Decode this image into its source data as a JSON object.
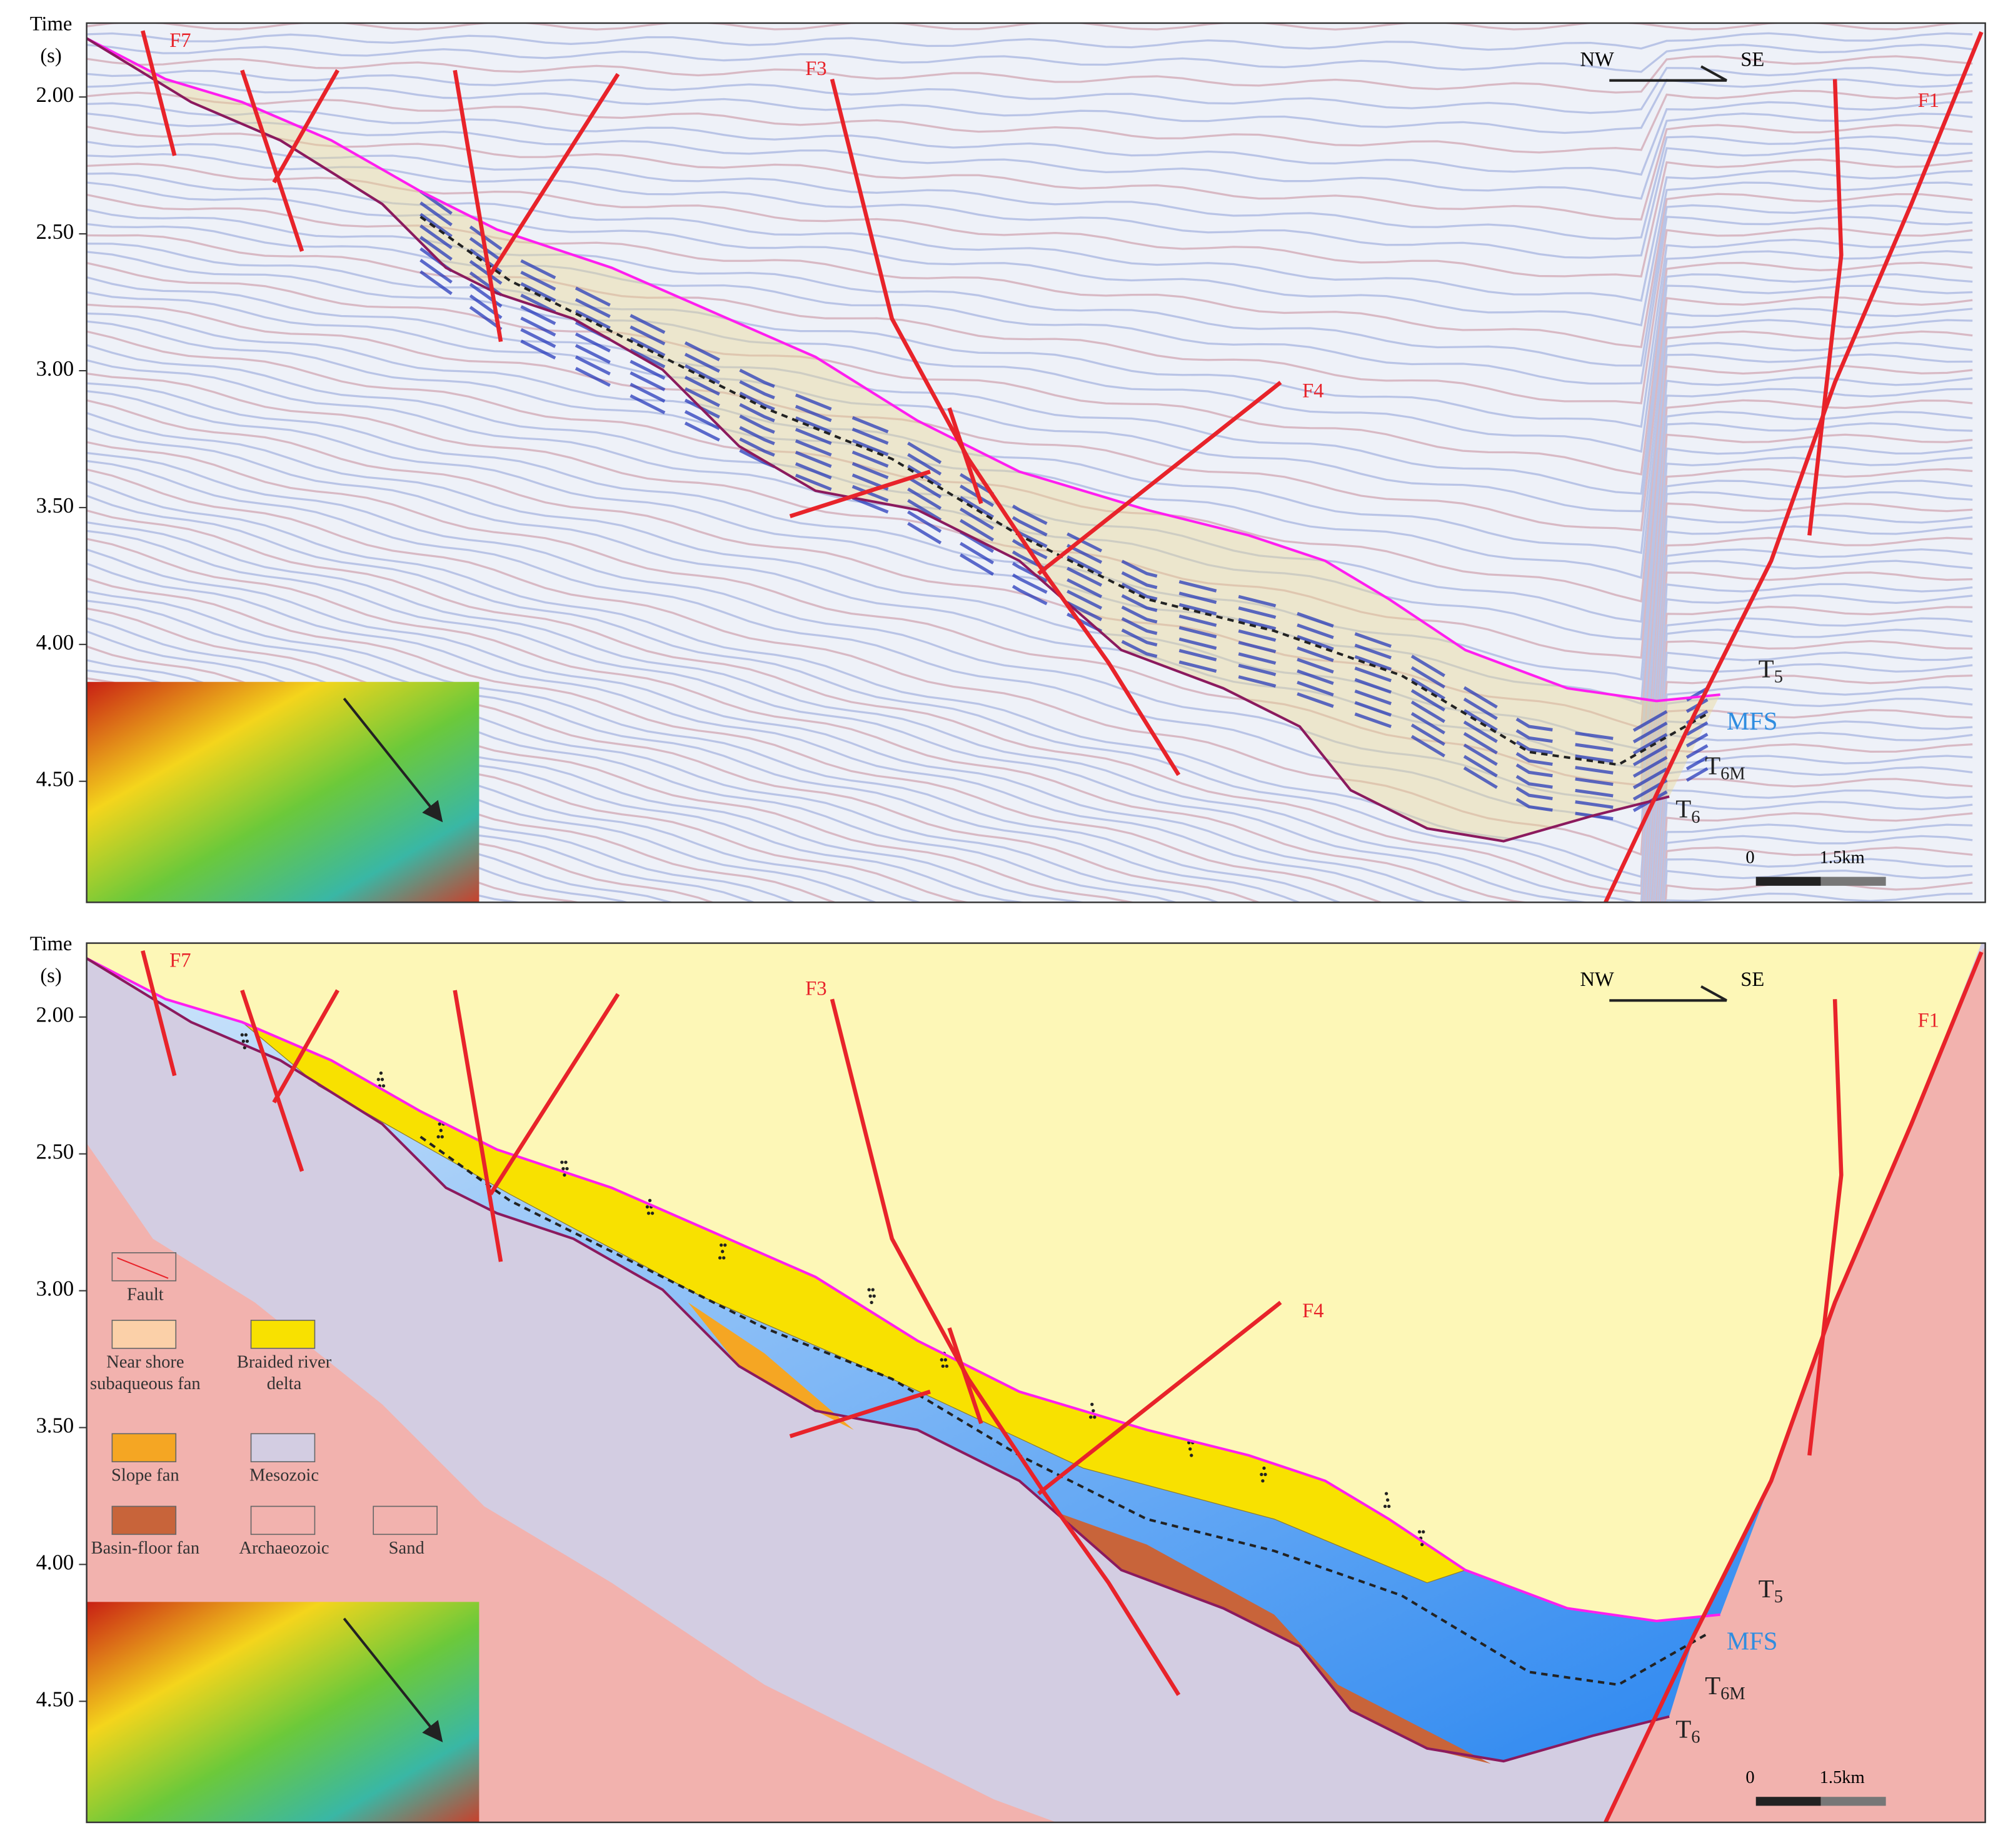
{
  "panels": [
    {
      "axis_title": [
        "Time",
        "(s)"
      ],
      "yticks": [
        "2.00",
        "2.50",
        "3.00",
        "3.50",
        "4.00",
        "4.50"
      ],
      "faults": [
        "F7",
        "F3",
        "F4",
        "F1"
      ],
      "orientation": [
        "NW",
        "SE"
      ],
      "horizons": [
        {
          "base": "T",
          "sub": "5"
        },
        {
          "base": "MFS"
        },
        {
          "base": "T",
          "sub": "6M"
        },
        {
          "base": "T",
          "sub": "6"
        }
      ],
      "scale": [
        "0",
        "1.5km"
      ]
    },
    {
      "axis_title": [
        "Time",
        "(s)"
      ],
      "yticks": [
        "2.00",
        "2.50",
        "3.00",
        "3.50",
        "4.00",
        "4.50"
      ],
      "faults": [
        "F7",
        "F3",
        "F4",
        "F1"
      ],
      "orientation": [
        "NW",
        "SE"
      ],
      "horizons": [
        {
          "base": "T",
          "sub": "5"
        },
        {
          "base": "MFS"
        },
        {
          "base": "T",
          "sub": "6M"
        },
        {
          "base": "T",
          "sub": "6"
        }
      ],
      "scale": [
        "0",
        "1.5km"
      ],
      "legend": [
        "Fault",
        "Near shore subaqueous fan",
        "Braided river delta",
        "Slope fan",
        "Mesozoic",
        "Basin-floor fan",
        "Archaeozoic",
        "Sand"
      ]
    }
  ]
}
